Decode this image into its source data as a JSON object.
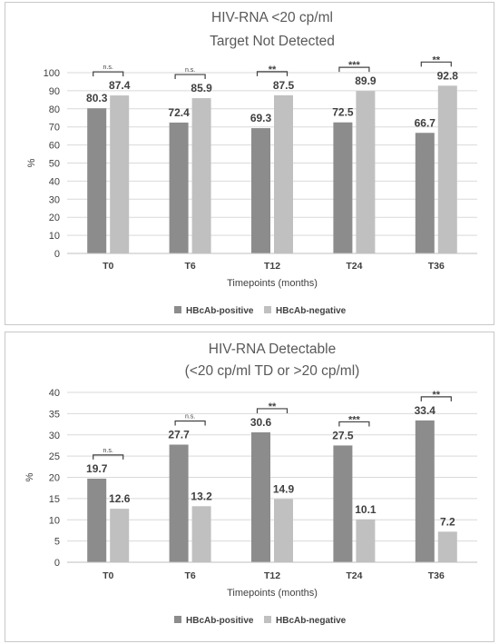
{
  "chart_data": [
    {
      "type": "bar",
      "title": "HIV-RNA <20 cp/ml",
      "subtitle": "Target Not Detected",
      "xlabel": "Timepoints (months)",
      "ylabel": "%",
      "ylim": [
        0,
        100
      ],
      "yticks": [
        0,
        10,
        20,
        30,
        40,
        50,
        60,
        70,
        80,
        90,
        100
      ],
      "categories": [
        "T0",
        "T6",
        "T12",
        "T24",
        "T36"
      ],
      "series": [
        {
          "name": "HBcAb-positive",
          "color": "#8c8c8c",
          "values": [
            80.3,
            72.4,
            69.3,
            72.5,
            66.7
          ]
        },
        {
          "name": "HBcAb-negative",
          "color": "#c0c0c0",
          "values": [
            87.4,
            85.9,
            87.5,
            89.9,
            92.8
          ]
        }
      ],
      "significance": [
        "n.s.",
        "n.s.",
        "**",
        "***",
        "**"
      ],
      "grid": true,
      "legend": "bottom"
    },
    {
      "type": "bar",
      "title": "HIV-RNA Detectable",
      "subtitle": "(<20 cp/ml TD or >20 cp/ml)",
      "xlabel": "Timepoints (months)",
      "ylabel": "%",
      "ylim": [
        0,
        40
      ],
      "yticks": [
        0,
        5,
        10,
        15,
        20,
        25,
        30,
        35,
        40
      ],
      "categories": [
        "T0",
        "T6",
        "T12",
        "T24",
        "T36"
      ],
      "series": [
        {
          "name": "HBcAb-positive",
          "color": "#8c8c8c",
          "values": [
            19.7,
            27.7,
            30.6,
            27.5,
            33.4
          ]
        },
        {
          "name": "HBcAb-negative",
          "color": "#c0c0c0",
          "values": [
            12.6,
            13.2,
            14.9,
            10.1,
            7.2
          ]
        }
      ],
      "significance": [
        "n.s.",
        "n.s.",
        "**",
        "***",
        "**"
      ],
      "grid": true,
      "legend": "bottom"
    }
  ]
}
